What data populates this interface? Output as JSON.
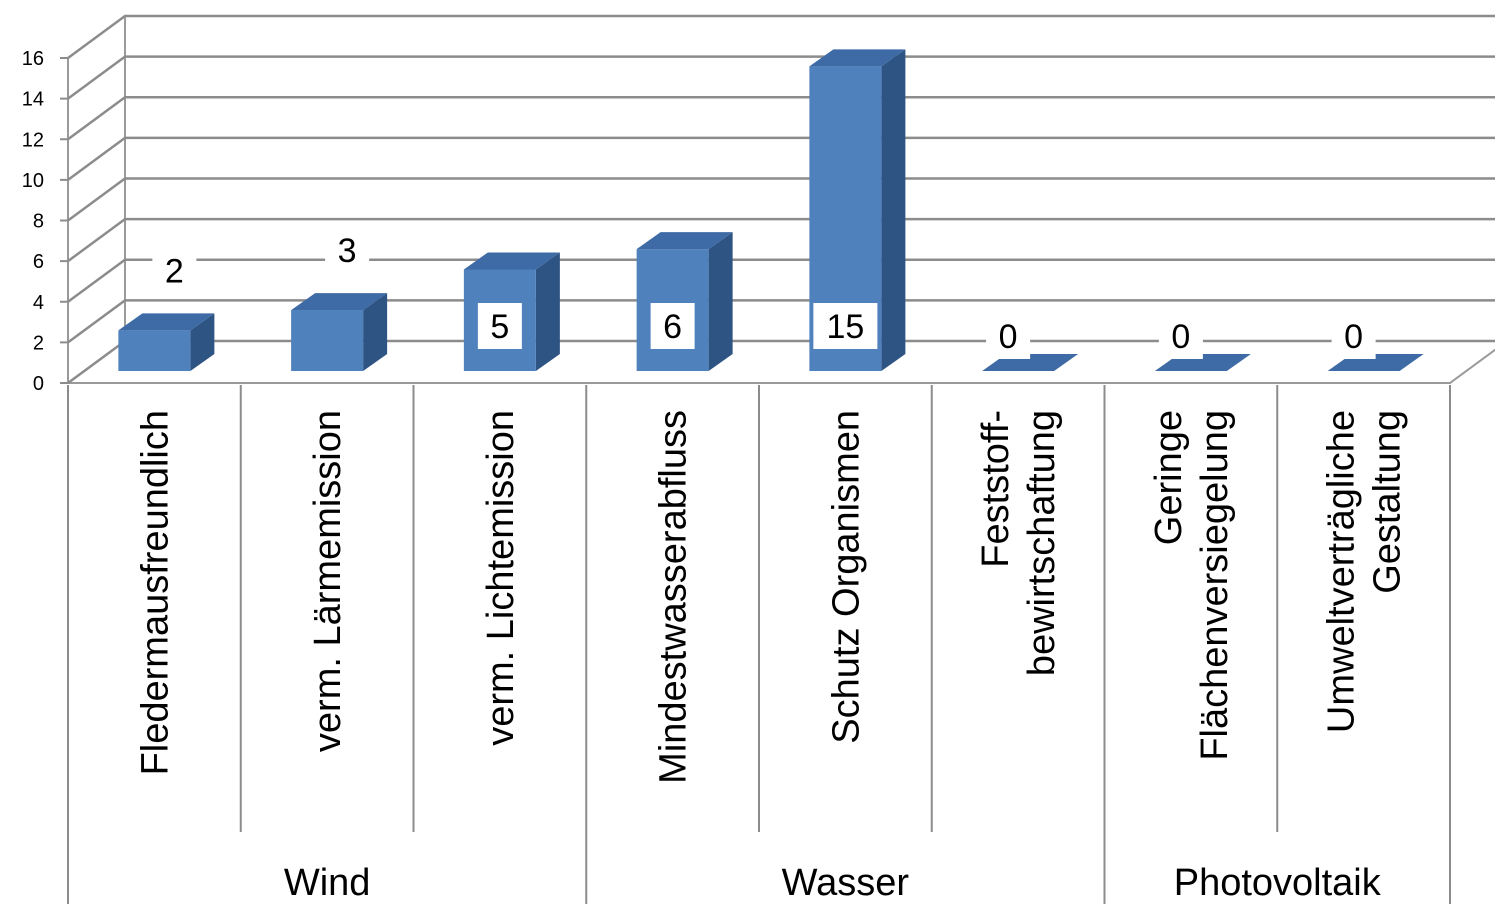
{
  "chart_data": {
    "type": "bar",
    "style": "3d-column",
    "categories": [
      [
        "Fledermausfreundlich"
      ],
      [
        "verm. Lärmemission"
      ],
      [
        "verm. Lichtemission"
      ],
      [
        "Mindestwasserabfluss"
      ],
      [
        "Schutz Organismen"
      ],
      [
        "Feststoff-",
        "bewirtschaftung"
      ],
      [
        "Geringe",
        "Flächenversiegelung"
      ],
      [
        "Umweltverträgliche",
        "Gestaltung"
      ]
    ],
    "groups": [
      {
        "label": "Wind",
        "span": 3
      },
      {
        "label": "Wasser",
        "span": 3
      },
      {
        "label": "Photovoltaik",
        "span": 2
      }
    ],
    "values": [
      2,
      3,
      5,
      6,
      15,
      0,
      0,
      0
    ],
    "data_labels": [
      "2",
      "3",
      "5",
      "6",
      "15",
      "0",
      "0",
      "0"
    ],
    "ylim": [
      0,
      16
    ],
    "yticks": [
      "0",
      "2",
      "4",
      "6",
      "8",
      "10",
      "12",
      "14",
      "16"
    ],
    "grid": true,
    "legend": "none",
    "colors": {
      "bar_front": "#4F81BD",
      "bar_side": "#2E5484",
      "bar_top": "#3E6BA5",
      "grid": "#8C8C8C",
      "text": "#000000"
    },
    "title": "",
    "xlabel": "",
    "ylabel": ""
  }
}
